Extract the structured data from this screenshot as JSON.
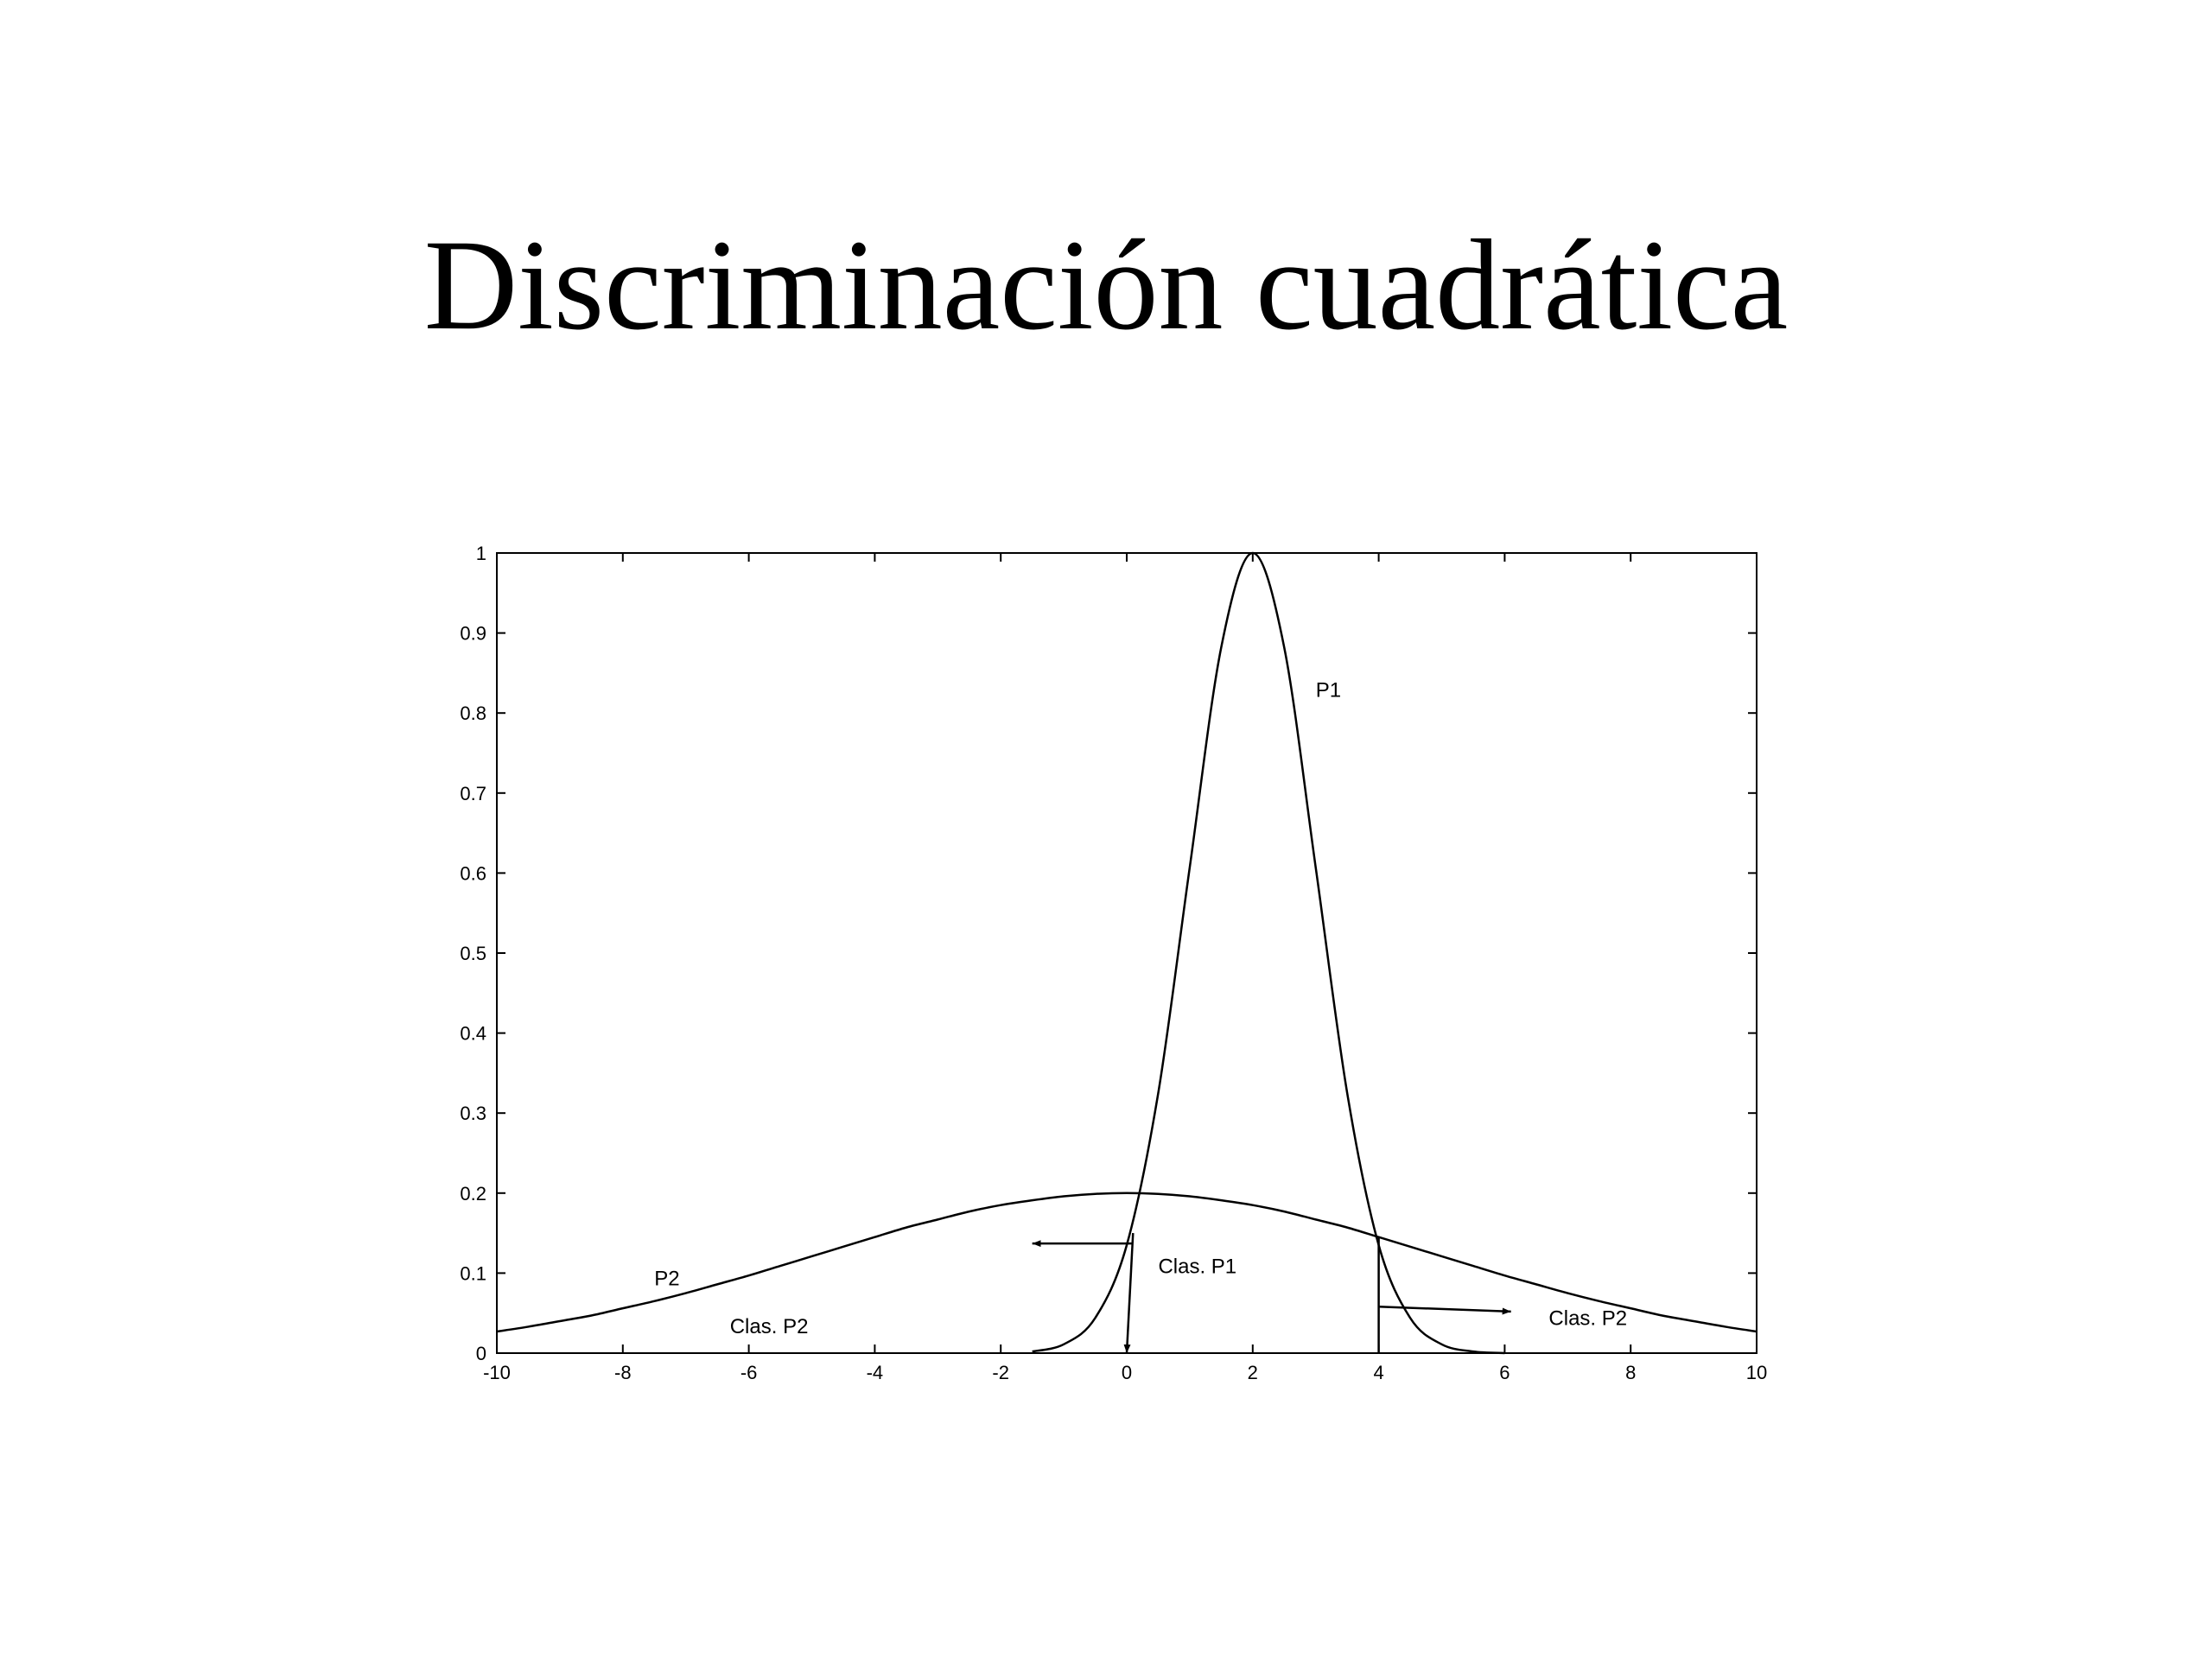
{
  "chart_data": {
    "type": "line",
    "title": "Discriminación cuadrática",
    "x": [
      -10,
      -9.5,
      -9,
      -8.5,
      -8,
      -7.5,
      -7,
      -6.5,
      -6,
      -5.5,
      -5,
      -4.5,
      -4,
      -3.5,
      -3,
      -2.5,
      -2,
      -1.5,
      -1,
      -0.5,
      0,
      0.5,
      1,
      1.5,
      2,
      2.5,
      3,
      3.5,
      4,
      4.5,
      5,
      5.5,
      6,
      6.5,
      7,
      7.5,
      8,
      8.5,
      9,
      9.5,
      10
    ],
    "series": [
      {
        "name": "P1",
        "color": "#000000",
        "values": [
          null,
          null,
          null,
          null,
          null,
          null,
          null,
          null,
          null,
          null,
          null,
          null,
          null,
          null,
          null,
          null,
          null,
          0.002,
          0.011,
          0.044,
          0.135,
          0.325,
          0.607,
          0.882,
          1,
          0.882,
          0.607,
          0.325,
          0.135,
          0.044,
          0.011,
          0.002,
          0,
          null,
          null,
          null,
          null,
          null,
          null,
          null,
          null
        ]
      },
      {
        "name": "P2",
        "color": "#000000",
        "values": [
          0.027,
          0.033,
          0.04,
          0.047,
          0.056,
          0.065,
          0.075,
          0.086,
          0.097,
          0.109,
          0.121,
          0.133,
          0.145,
          0.157,
          0.167,
          0.177,
          0.185,
          0.191,
          0.196,
          0.199,
          0.2,
          0.199,
          0.196,
          0.191,
          0.185,
          0.177,
          0.167,
          0.157,
          0.145,
          0.133,
          0.121,
          0.109,
          0.097,
          0.086,
          0.075,
          0.065,
          0.056,
          0.047,
          0.04,
          0.033,
          0.027
        ]
      }
    ],
    "annotations": [
      "Clas. P1",
      "Clas. P2",
      "Clas. P2"
    ],
    "xlim": [
      -10,
      10
    ],
    "xticks": [
      -10,
      -8,
      -6,
      -4,
      -2,
      0,
      2,
      4,
      6,
      8,
      10
    ],
    "ylim": [
      0,
      1
    ],
    "yticks": [
      0,
      0.1,
      0.2,
      0.3,
      0.4,
      0.5,
      0.6,
      0.7,
      0.8,
      0.9,
      1
    ],
    "grid": false
  }
}
